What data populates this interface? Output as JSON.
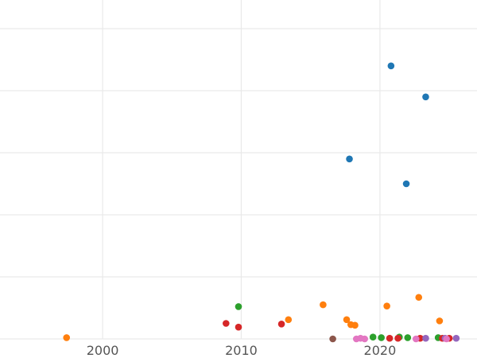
{
  "chart_data": {
    "type": "scatter",
    "title": "",
    "xlabel": "",
    "ylabel": "",
    "grid": true,
    "legend": "none",
    "xlim": [
      1992.6,
      2027
    ],
    "ylim": [
      0,
      5.5
    ],
    "x_ticks": [
      2000,
      2010,
      2020
    ],
    "x_tick_labels": [
      "2000",
      "2010",
      "2020"
    ],
    "y_gridlines": [
      0,
      1,
      2,
      3,
      4,
      5
    ],
    "series": [
      {
        "color": "#1f77b4",
        "points": [
          [
            2020.8,
            4.4
          ],
          [
            2023.3,
            3.9
          ],
          [
            2017.8,
            2.9
          ],
          [
            2021.9,
            2.5
          ]
        ]
      },
      {
        "color": "#ff7f0e",
        "points": [
          [
            1997.4,
            0.02
          ],
          [
            2013.4,
            0.31
          ],
          [
            2015.9,
            0.55
          ],
          [
            2017.6,
            0.31
          ],
          [
            2017.9,
            0.23
          ],
          [
            2018.2,
            0.22
          ],
          [
            2020.5,
            0.53
          ],
          [
            2022.8,
            0.67
          ],
          [
            2024.3,
            0.29
          ]
        ]
      },
      {
        "color": "#2ca02c",
        "points": [
          [
            2009.8,
            0.52
          ],
          [
            2019.5,
            0.03
          ],
          [
            2020.1,
            0.02
          ],
          [
            2021.4,
            0.03
          ],
          [
            2022.0,
            0.02
          ],
          [
            2024.2,
            0.02
          ]
        ]
      },
      {
        "color": "#d62728",
        "points": [
          [
            2008.9,
            0.25
          ],
          [
            2009.8,
            0.19
          ],
          [
            2012.9,
            0.24
          ],
          [
            2020.7,
            0.01
          ],
          [
            2021.3,
            0.01
          ],
          [
            2022.9,
            0.01
          ],
          [
            2024.5,
            0.01
          ],
          [
            2025.0,
            0.01
          ]
        ]
      },
      {
        "color": "#9467bd",
        "points": [
          [
            2023.3,
            0.01
          ],
          [
            2024.7,
            0.01
          ],
          [
            2025.5,
            0.01
          ]
        ]
      },
      {
        "color": "#8c564b",
        "points": [
          [
            2016.6,
            0.0
          ]
        ]
      },
      {
        "color": "#e377c2",
        "points": [
          [
            2018.3,
            0.0
          ],
          [
            2018.6,
            0.01
          ],
          [
            2018.9,
            0.0
          ],
          [
            2022.6,
            0.0
          ],
          [
            2024.8,
            0.0
          ]
        ]
      }
    ]
  }
}
